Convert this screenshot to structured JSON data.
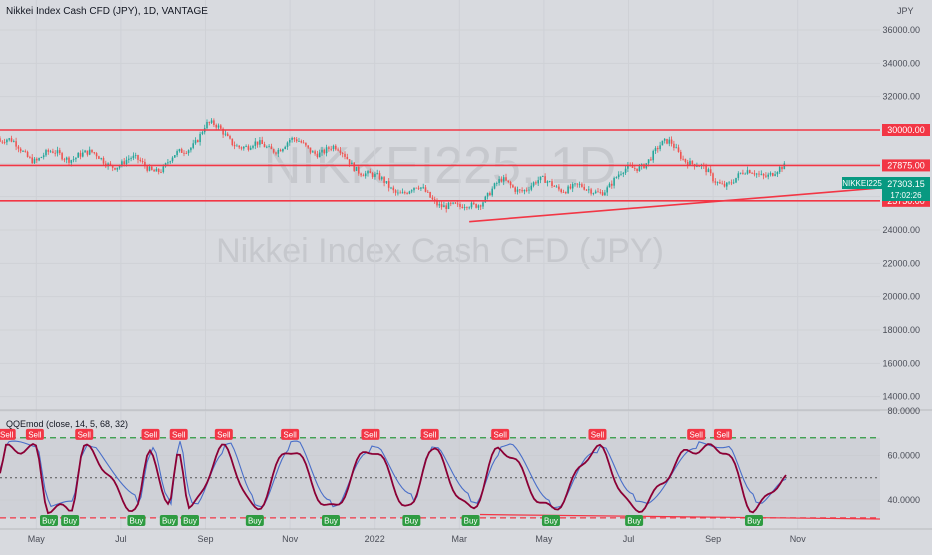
{
  "chart_data": {
    "type": "candlestick",
    "title": "Nikkei Index Cash CFD (JPY), 1D, VANTAGE",
    "watermark_symbol": "NIKKEI225, 1D",
    "watermark_name": "Nikkei Index Cash CFD (JPY)",
    "currency_label": "JPY",
    "y_axis_ticks": [
      "36000.00",
      "34000.00",
      "32000.00",
      "30000.00",
      "28000.00",
      "26000.00",
      "24000.00",
      "22000.00",
      "20000.00",
      "18000.00",
      "16000.00",
      "14000.00"
    ],
    "x_axis_labels": [
      "May",
      "Jul",
      "Sep",
      "Nov",
      "2022",
      "Mar",
      "May",
      "Jul",
      "Sep",
      "Nov"
    ],
    "price_ylim": [
      13200,
      37800
    ],
    "horizontal_levels": [
      {
        "label": "30000.00",
        "value": 30000,
        "color": "#f23645"
      },
      {
        "label": "27875.00",
        "value": 27875,
        "color": "#f23645"
      },
      {
        "label": "25750.00",
        "value": 25750,
        "color": "#f23645"
      }
    ],
    "last_price": {
      "symbol": "NIKKEI225",
      "value": "27303.15",
      "countdown": "17:02:26",
      "color": "#089981"
    },
    "trendline": {
      "from": {
        "x": "2022-03-08",
        "y": 24500
      },
      "to": {
        "x": "2022-10-24",
        "y": 26200
      }
    },
    "price_series_outline": [
      {
        "x": "2021-04",
        "y": 29500
      },
      {
        "x": "2021-05",
        "y": 28100
      },
      {
        "x": "2021-06",
        "y": 28900
      },
      {
        "x": "2021-07",
        "y": 27800
      },
      {
        "x": "2021-08",
        "y": 27700
      },
      {
        "x": "2021-09",
        "y": 30400
      },
      {
        "x": "2021-10",
        "y": 28600
      },
      {
        "x": "2021-11",
        "y": 29500
      },
      {
        "x": "2021-12",
        "y": 28600
      },
      {
        "x": "2022-01",
        "y": 27000
      },
      {
        "x": "2022-02",
        "y": 26500
      },
      {
        "x": "2022-03",
        "y": 24800
      },
      {
        "x": "2022-04",
        "y": 27000
      },
      {
        "x": "2022-05",
        "y": 26600
      },
      {
        "x": "2022-06",
        "y": 26200
      },
      {
        "x": "2022-07",
        "y": 27700
      },
      {
        "x": "2022-08",
        "y": 28900
      },
      {
        "x": "2022-09",
        "y": 27200
      },
      {
        "x": "2022-10",
        "y": 27300
      }
    ],
    "indicator": {
      "label": "QQEmod (close, 14, 5, 68, 32)",
      "y_axis_ticks": [
        "80.0000",
        "60.0000",
        "40.0000"
      ],
      "ylim": [
        27,
        80
      ],
      "upper_level": 68,
      "mid_level": 50,
      "lower_level": 32,
      "signals": [
        {
          "x": "2021-04-10",
          "type": "Sell"
        },
        {
          "x": "2021-04-30",
          "type": "Sell"
        },
        {
          "x": "2021-05-10",
          "type": "Buy"
        },
        {
          "x": "2021-05-25",
          "type": "Buy"
        },
        {
          "x": "2021-06-05",
          "type": "Sell"
        },
        {
          "x": "2021-07-12",
          "type": "Buy"
        },
        {
          "x": "2021-07-22",
          "type": "Sell"
        },
        {
          "x": "2021-08-05",
          "type": "Buy"
        },
        {
          "x": "2021-08-12",
          "type": "Sell"
        },
        {
          "x": "2021-08-20",
          "type": "Buy"
        },
        {
          "x": "2021-09-14",
          "type": "Sell"
        },
        {
          "x": "2021-10-06",
          "type": "Buy"
        },
        {
          "x": "2021-11-01",
          "type": "Sell"
        },
        {
          "x": "2021-11-30",
          "type": "Buy"
        },
        {
          "x": "2021-12-28",
          "type": "Sell"
        },
        {
          "x": "2022-01-27",
          "type": "Buy"
        },
        {
          "x": "2022-02-10",
          "type": "Sell"
        },
        {
          "x": "2022-03-09",
          "type": "Buy"
        },
        {
          "x": "2022-03-30",
          "type": "Sell"
        },
        {
          "x": "2022-05-06",
          "type": "Buy"
        },
        {
          "x": "2022-06-09",
          "type": "Sell"
        },
        {
          "x": "2022-07-05",
          "type": "Buy"
        },
        {
          "x": "2022-08-19",
          "type": "Sell"
        },
        {
          "x": "2022-09-08",
          "type": "Sell"
        },
        {
          "x": "2022-09-30",
          "type": "Buy"
        }
      ]
    },
    "colors": {
      "up": "#26a69a",
      "down": "#ef5350",
      "level": "#f23645",
      "qqe_line": "#8b0035",
      "qqe_fast": "#4a6fc9",
      "upper_dash": "#2e9b41",
      "lower_dash": "#f23645"
    }
  }
}
